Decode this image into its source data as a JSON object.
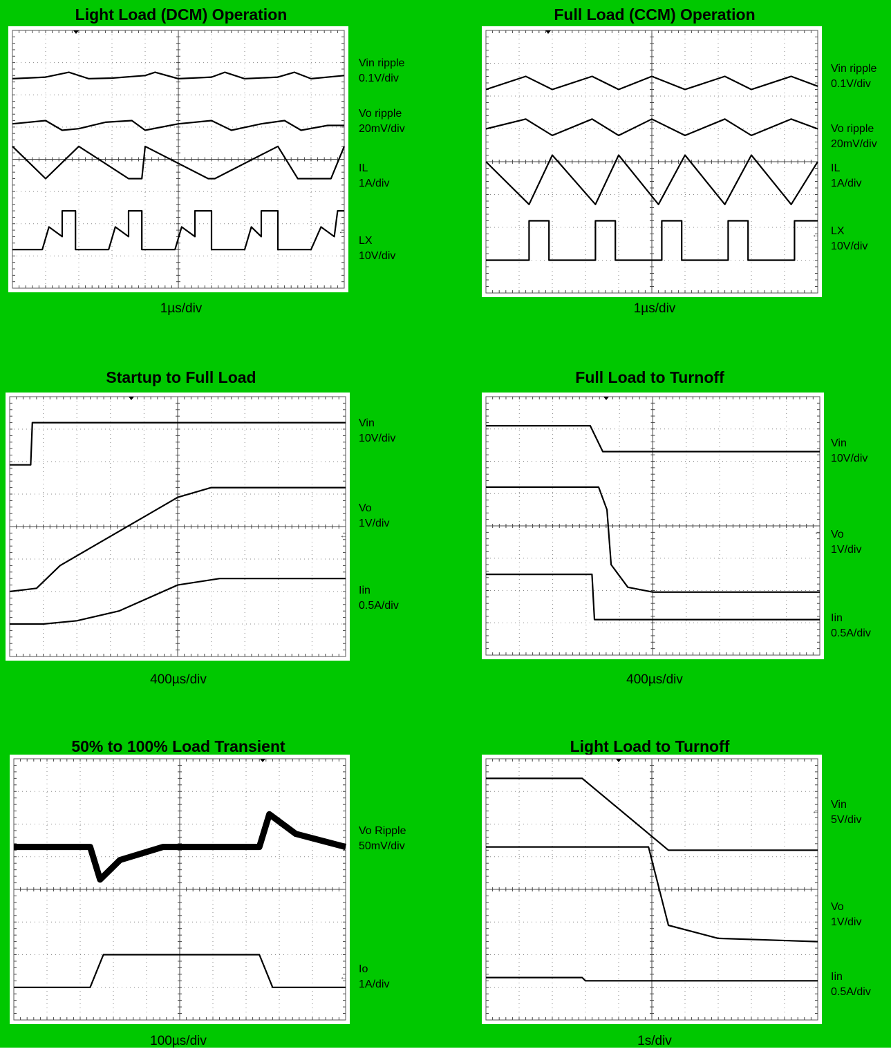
{
  "charts": [
    {
      "title": "Light Load (DCM) Operation",
      "time_div": "1µs/div",
      "channels": [
        {
          "name": "Vin ripple",
          "scale": "0.1V/div"
        },
        {
          "name": "Vo ripple",
          "scale": "20mV/div"
        },
        {
          "name": "IL",
          "scale": "1A/div"
        },
        {
          "name": "LX",
          "scale": "10V/div"
        }
      ]
    },
    {
      "title": "Full Load (CCM) Operation",
      "time_div": "1µs/div",
      "channels": [
        {
          "name": "Vin ripple",
          "scale": "0.1V/div"
        },
        {
          "name": "Vo ripple",
          "scale": "20mV/div"
        },
        {
          "name": "IL",
          "scale": "1A/div"
        },
        {
          "name": "LX",
          "scale": "10V/div"
        }
      ]
    },
    {
      "title": "Startup to Full Load",
      "time_div": "400µs/div",
      "channels": [
        {
          "name": "Vin",
          "scale": "10V/div"
        },
        {
          "name": "Vo",
          "scale": "1V/div"
        },
        {
          "name": "Iin",
          "scale": "0.5A/div"
        }
      ]
    },
    {
      "title": "Full Load to Turnoff",
      "time_div": "400µs/div",
      "channels": [
        {
          "name": "Vin",
          "scale": "10V/div"
        },
        {
          "name": "Vo",
          "scale": "1V/div"
        },
        {
          "name": "Iin",
          "scale": "0.5A/div"
        }
      ]
    },
    {
      "title": "50% to 100% Load Transient",
      "time_div": "100µs/div",
      "channels": [
        {
          "name": "Vo Ripple",
          "scale": "50mV/div"
        },
        {
          "name": "Io",
          "scale": "1A/div"
        }
      ]
    },
    {
      "title": "Light Load to Turnoff",
      "time_div": "1s/div",
      "channels": [
        {
          "name": "Vin",
          "scale": "5V/div"
        },
        {
          "name": "Vo",
          "scale": "1V/div"
        },
        {
          "name": "Iin",
          "scale": "0.5A/div"
        }
      ]
    }
  ],
  "chart_data": [
    {
      "type": "line",
      "title": "Light Load (DCM) Operation",
      "x_unit": "µs",
      "x_range": [
        0,
        10
      ],
      "y_range": [
        -4,
        4
      ],
      "grid": true,
      "series": [
        {
          "name": "Vin ripple",
          "points": [
            [
              0,
              2.5
            ],
            [
              1,
              2.55
            ],
            [
              1.7,
              2.7
            ],
            [
              2.3,
              2.5
            ],
            [
              3,
              2.52
            ],
            [
              4,
              2.6
            ],
            [
              4.3,
              2.7
            ],
            [
              5,
              2.5
            ],
            [
              6,
              2.55
            ],
            [
              6.4,
              2.7
            ],
            [
              7,
              2.5
            ],
            [
              8,
              2.55
            ],
            [
              8.5,
              2.7
            ],
            [
              9,
              2.5
            ],
            [
              10,
              2.6
            ]
          ]
        },
        {
          "name": "Vo ripple",
          "points": [
            [
              0,
              1.1
            ],
            [
              1,
              1.2
            ],
            [
              1.5,
              0.9
            ],
            [
              2,
              0.95
            ],
            [
              2.8,
              1.15
            ],
            [
              3.6,
              1.2
            ],
            [
              4,
              0.9
            ],
            [
              5,
              1.1
            ],
            [
              6,
              1.2
            ],
            [
              6.6,
              0.9
            ],
            [
              7.5,
              1.1
            ],
            [
              8.2,
              1.2
            ],
            [
              8.7,
              0.9
            ],
            [
              9.5,
              1.05
            ],
            [
              10,
              1.05
            ]
          ]
        },
        {
          "name": "IL",
          "points": [
            [
              0,
              0.4
            ],
            [
              1,
              -0.6
            ],
            [
              2,
              0.4
            ],
            [
              3.5,
              -0.6
            ],
            [
              3.9,
              -0.6
            ],
            [
              4,
              0.4
            ],
            [
              5.9,
              -0.6
            ],
            [
              6.1,
              -0.6
            ],
            [
              8,
              0.4
            ],
            [
              8.6,
              -0.6
            ],
            [
              9.6,
              -0.6
            ],
            [
              10,
              0.4
            ]
          ]
        },
        {
          "name": "LX",
          "points": [
            [
              0,
              -2.8
            ],
            [
              0.9,
              -2.8
            ],
            [
              1.1,
              -2.1
            ],
            [
              1.5,
              -2.4
            ],
            [
              1.5,
              -1.6
            ],
            [
              1.9,
              -1.6
            ],
            [
              1.9,
              -2.8
            ],
            [
              2.9,
              -2.8
            ],
            [
              3.1,
              -2.1
            ],
            [
              3.5,
              -2.4
            ],
            [
              3.5,
              -1.6
            ],
            [
              3.9,
              -1.6
            ],
            [
              3.9,
              -2.8
            ],
            [
              4.9,
              -2.8
            ],
            [
              5.1,
              -2.1
            ],
            [
              5.5,
              -2.4
            ],
            [
              5.5,
              -1.6
            ],
            [
              6,
              -1.6
            ],
            [
              6,
              -2.8
            ],
            [
              7,
              -2.8
            ],
            [
              7.2,
              -2.1
            ],
            [
              7.5,
              -2.4
            ],
            [
              7.5,
              -1.6
            ],
            [
              8,
              -1.6
            ],
            [
              8,
              -2.8
            ],
            [
              9,
              -2.8
            ],
            [
              9.3,
              -2.1
            ],
            [
              9.7,
              -2.4
            ],
            [
              9.8,
              -1.6
            ],
            [
              10,
              -1.6
            ]
          ]
        }
      ]
    },
    {
      "type": "line",
      "title": "Full Load (CCM) Operation",
      "x_unit": "µs",
      "x_range": [
        0,
        10
      ],
      "y_range": [
        -4,
        4
      ],
      "grid": true,
      "series": [
        {
          "name": "Vin ripple",
          "points": [
            [
              0,
              2.2
            ],
            [
              1.2,
              2.6
            ],
            [
              2,
              2.2
            ],
            [
              3.2,
              2.6
            ],
            [
              4,
              2.2
            ],
            [
              5,
              2.6
            ],
            [
              6,
              2.2
            ],
            [
              7.2,
              2.6
            ],
            [
              8,
              2.2
            ],
            [
              9.2,
              2.6
            ],
            [
              10,
              2.3
            ]
          ]
        },
        {
          "name": "Vo ripple",
          "points": [
            [
              0,
              1
            ],
            [
              1.2,
              1.3
            ],
            [
              2,
              0.8
            ],
            [
              3.2,
              1.3
            ],
            [
              4,
              0.8
            ],
            [
              5,
              1.3
            ],
            [
              6,
              0.8
            ],
            [
              7.2,
              1.3
            ],
            [
              8,
              0.8
            ],
            [
              9.2,
              1.3
            ],
            [
              10,
              1
            ]
          ]
        },
        {
          "name": "IL",
          "points": [
            [
              0,
              0
            ],
            [
              1.3,
              -1.3
            ],
            [
              2,
              0.2
            ],
            [
              3.3,
              -1.3
            ],
            [
              4,
              0.2
            ],
            [
              5.2,
              -1.3
            ],
            [
              6,
              0.2
            ],
            [
              7.2,
              -1.3
            ],
            [
              8,
              0.2
            ],
            [
              9.2,
              -1.3
            ],
            [
              10,
              0
            ]
          ]
        },
        {
          "name": "LX",
          "points": [
            [
              0,
              -3
            ],
            [
              1.3,
              -3
            ],
            [
              1.3,
              -1.8
            ],
            [
              1.9,
              -1.8
            ],
            [
              1.9,
              -3
            ],
            [
              3.3,
              -3
            ],
            [
              3.3,
              -1.8
            ],
            [
              3.9,
              -1.8
            ],
            [
              3.9,
              -3
            ],
            [
              5.3,
              -3
            ],
            [
              5.3,
              -1.8
            ],
            [
              5.9,
              -1.8
            ],
            [
              5.9,
              -3
            ],
            [
              7.3,
              -3
            ],
            [
              7.3,
              -1.8
            ],
            [
              7.9,
              -1.8
            ],
            [
              7.9,
              -3
            ],
            [
              9.3,
              -3
            ],
            [
              9.3,
              -1.8
            ],
            [
              10,
              -1.8
            ]
          ]
        }
      ]
    },
    {
      "type": "line",
      "title": "Startup to Full Load",
      "x_unit": "µs",
      "x_range": [
        0,
        4000
      ],
      "y_range": [
        -4,
        4
      ],
      "grid": true,
      "series": [
        {
          "name": "Vin",
          "points": [
            [
              0,
              1.9
            ],
            [
              250,
              1.9
            ],
            [
              270,
              3.2
            ],
            [
              4000,
              3.2
            ]
          ]
        },
        {
          "name": "Vo",
          "points": [
            [
              0,
              -2
            ],
            [
              320,
              -1.9
            ],
            [
              600,
              -1.2
            ],
            [
              1000,
              -0.6
            ],
            [
              1600,
              0.3
            ],
            [
              2000,
              0.9
            ],
            [
              2400,
              1.2
            ],
            [
              4000,
              1.2
            ]
          ]
        },
        {
          "name": "Iin",
          "points": [
            [
              0,
              -3
            ],
            [
              400,
              -3
            ],
            [
              800,
              -2.9
            ],
            [
              1300,
              -2.6
            ],
            [
              2000,
              -1.8
            ],
            [
              2500,
              -1.6
            ],
            [
              4000,
              -1.6
            ]
          ]
        }
      ]
    },
    {
      "type": "line",
      "title": "Full Load to Turnoff",
      "x_unit": "µs",
      "x_range": [
        0,
        4000
      ],
      "y_range": [
        -4,
        4
      ],
      "grid": true,
      "series": [
        {
          "name": "Vin",
          "points": [
            [
              0,
              3.1
            ],
            [
              1250,
              3.1
            ],
            [
              1400,
              2.3
            ],
            [
              4000,
              2.3
            ]
          ]
        },
        {
          "name": "Vo",
          "points": [
            [
              0,
              1.2
            ],
            [
              1350,
              1.2
            ],
            [
              1450,
              0.5
            ],
            [
              1500,
              -1.2
            ],
            [
              1700,
              -1.9
            ],
            [
              2000,
              -2.05
            ],
            [
              4000,
              -2.05
            ]
          ]
        },
        {
          "name": "Iin",
          "points": [
            [
              0,
              -1.5
            ],
            [
              1270,
              -1.5
            ],
            [
              1300,
              -2.9
            ],
            [
              4000,
              -2.9
            ]
          ]
        }
      ]
    },
    {
      "type": "line",
      "title": "50% to 100% Load Transient",
      "x_unit": "µs",
      "x_range": [
        0,
        1000
      ],
      "y_range": [
        -4,
        4
      ],
      "grid": true,
      "series": [
        {
          "name": "Vo Ripple",
          "points": [
            [
              0,
              1.3
            ],
            [
              230,
              1.3
            ],
            [
              260,
              0.3
            ],
            [
              320,
              0.9
            ],
            [
              450,
              1.3
            ],
            [
              740,
              1.3
            ],
            [
              770,
              2.3
            ],
            [
              850,
              1.7
            ],
            [
              1000,
              1.3
            ]
          ]
        },
        {
          "name": "Io",
          "points": [
            [
              0,
              -3
            ],
            [
              230,
              -3
            ],
            [
              270,
              -2
            ],
            [
              740,
              -2
            ],
            [
              780,
              -3
            ],
            [
              1000,
              -3
            ]
          ]
        }
      ]
    },
    {
      "type": "line",
      "title": "Light Load to Turnoff",
      "x_unit": "s",
      "x_range": [
        0,
        10
      ],
      "y_range": [
        -4,
        4
      ],
      "grid": true,
      "series": [
        {
          "name": "Vin",
          "points": [
            [
              0,
              3.4
            ],
            [
              2.9,
              3.4
            ],
            [
              5.5,
              1.2
            ],
            [
              10,
              1.2
            ]
          ]
        },
        {
          "name": "Vo",
          "points": [
            [
              0,
              1.3
            ],
            [
              4.9,
              1.3
            ],
            [
              5.5,
              -1.1
            ],
            [
              7,
              -1.5
            ],
            [
              10,
              -1.6
            ]
          ]
        },
        {
          "name": "Iin",
          "points": [
            [
              0,
              -2.7
            ],
            [
              2.9,
              -2.7
            ],
            [
              3,
              -2.8
            ],
            [
              10,
              -2.8
            ]
          ]
        }
      ]
    }
  ]
}
